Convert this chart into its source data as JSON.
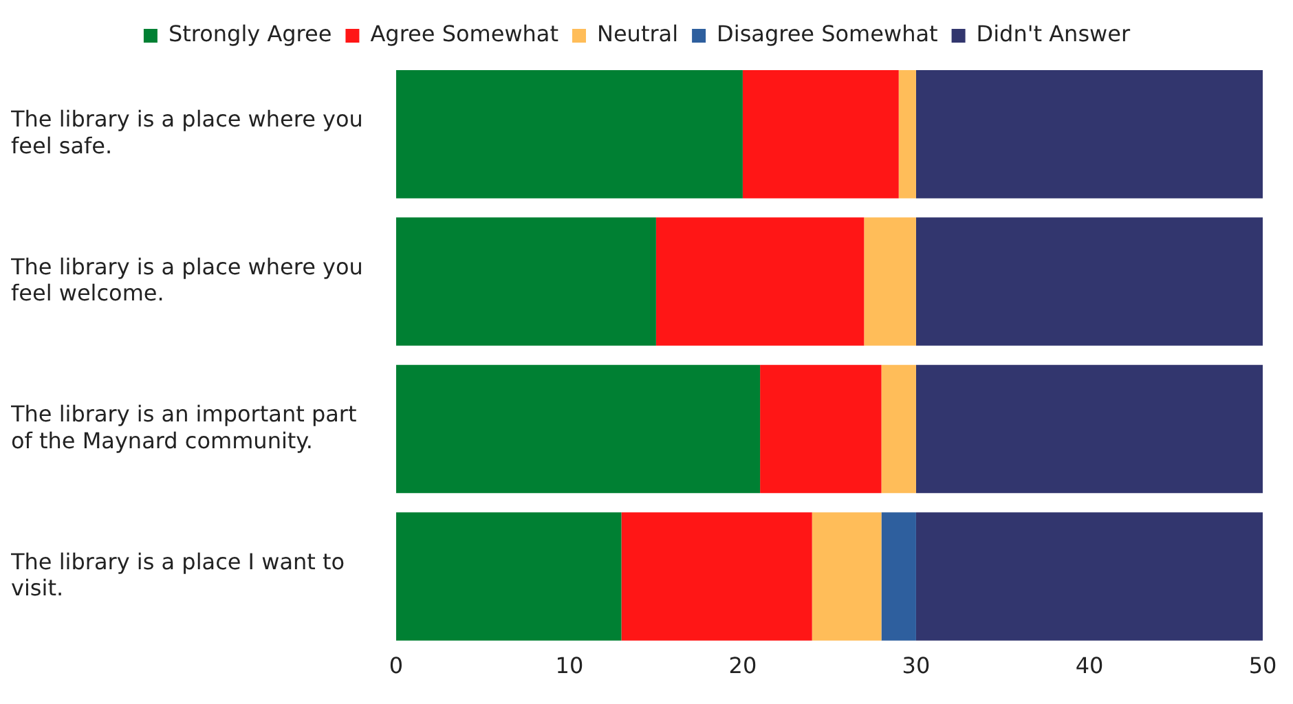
{
  "chart_data": {
    "type": "bar",
    "orientation": "horizontal",
    "stacked": true,
    "categories": [
      "The library is a place where you feel safe.",
      "The library is a place where you feel welcome.",
      "The library is an important part of the Maynard community.",
      "The library is a place I want to visit."
    ],
    "series": [
      {
        "name": "Strongly Agree",
        "color": "#008033",
        "values": [
          20,
          15,
          21,
          13
        ]
      },
      {
        "name": "Agree Somewhat",
        "color": "#ff1616",
        "values": [
          9,
          12,
          7,
          11
        ]
      },
      {
        "name": "Neutral",
        "color": "#ffbd59",
        "values": [
          1,
          3,
          2,
          4
        ]
      },
      {
        "name": "Disagree Somewhat",
        "color": "#2e5f9e",
        "values": [
          0,
          0,
          0,
          2
        ]
      },
      {
        "name": "Didn't Answer",
        "color": "#32366e",
        "values": [
          20,
          20,
          20,
          20
        ]
      }
    ],
    "xlim": [
      0,
      50
    ],
    "xticks": [
      0,
      10,
      20,
      30,
      40,
      50
    ],
    "grid": false,
    "legend": "top"
  }
}
